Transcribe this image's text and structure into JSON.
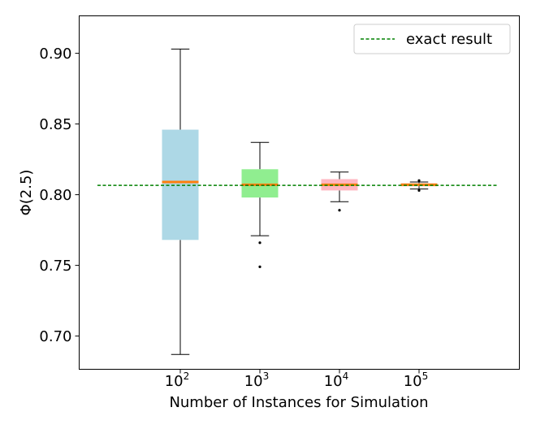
{
  "chart_data": {
    "type": "boxplot",
    "title": "",
    "xlabel": "Number of Instances for Simulation",
    "ylabel": "Φ(2.5)",
    "ylim": [
      0.6765,
      0.9265
    ],
    "yticks": [
      "0.70",
      "0.75",
      "0.80",
      "0.85",
      "0.90"
    ],
    "ytick_values": [
      0.7,
      0.75,
      0.8,
      0.85,
      0.9
    ],
    "categories": [
      {
        "base": "10",
        "exp": "2"
      },
      {
        "base": "10",
        "exp": "3"
      },
      {
        "base": "10",
        "exp": "4"
      },
      {
        "base": "10",
        "exp": "5"
      }
    ],
    "boxes": [
      {
        "whisker_low": 0.687,
        "q1": 0.768,
        "median": 0.809,
        "q3": 0.846,
        "whisker_high": 0.903,
        "outliers": [],
        "color": "#add8e6"
      },
      {
        "whisker_low": 0.771,
        "q1": 0.798,
        "median": 0.807,
        "q3": 0.818,
        "whisker_high": 0.837,
        "outliers": [
          0.766,
          0.749
        ],
        "color": "#90ee90"
      },
      {
        "whisker_low": 0.795,
        "q1": 0.803,
        "median": 0.807,
        "q3": 0.811,
        "whisker_high": 0.816,
        "outliers": [
          0.789
        ],
        "color": "#ffb6c1"
      },
      {
        "whisker_low": 0.804,
        "q1": 0.806,
        "median": 0.807,
        "q3": 0.808,
        "whisker_high": 0.809,
        "outliers": [
          0.81,
          0.803
        ],
        "color": "#ffa07a"
      }
    ],
    "reference_line": {
      "value": 0.8066,
      "label": "exact result",
      "color": "#008000"
    },
    "median_color": "#ff7f0e",
    "legend_position": "top-right",
    "grid": false
  }
}
